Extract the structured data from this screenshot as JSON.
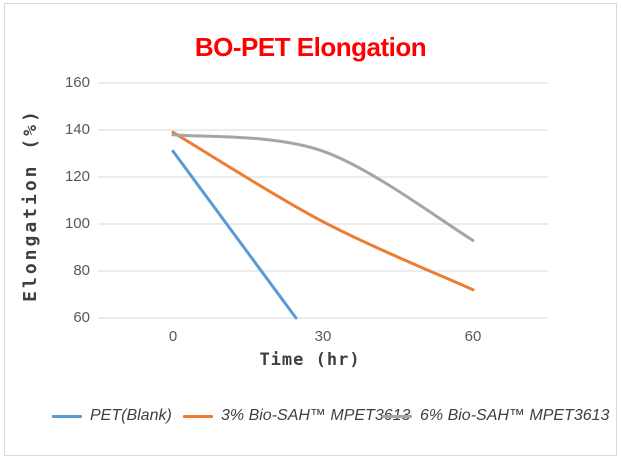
{
  "chart_data": {
    "type": "line",
    "title": "BO-PET Elongation",
    "title_color": "#FF0000",
    "xlabel": "Time (hr)",
    "ylabel": "Elongation (%)",
    "xticks": [
      0,
      30,
      60
    ],
    "yticks": [
      160,
      140,
      120,
      100,
      80,
      60
    ],
    "ylim": [
      60,
      160
    ],
    "grid": "horizontal",
    "gridline_color": "#d9d9d9",
    "legend_position": "bottom",
    "axis_text_color": "#595959",
    "series": [
      {
        "name": "PET(Blank)",
        "color": "#5B9BD5",
        "smooth": false,
        "points": [
          [
            0,
            131
          ],
          [
            24.6,
            60
          ]
        ],
        "note": "straight steep decline; visually clipped where it reaches the 60% axis minimum at about 24-25 hr"
      },
      {
        "name": "3% Bio-SAH™ MPET3613",
        "color": "#ED7D31",
        "smooth": true,
        "points": [
          [
            0,
            139
          ],
          [
            30,
            101
          ],
          [
            60,
            72
          ]
        ]
      },
      {
        "name": "6% Bio-SAH™ MPET3613",
        "color": "#A5A5A5",
        "smooth": true,
        "points": [
          [
            0,
            138
          ],
          [
            30,
            131
          ],
          [
            60,
            93
          ]
        ]
      }
    ]
  }
}
